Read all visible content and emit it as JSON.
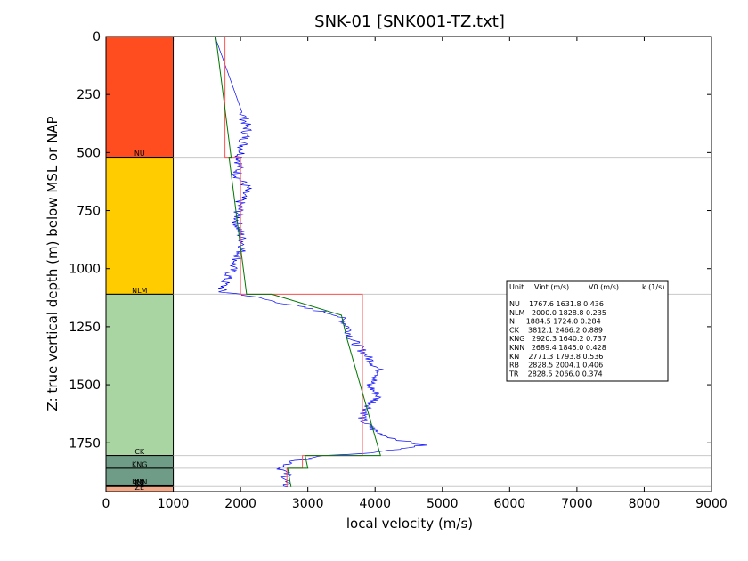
{
  "chart_data": {
    "type": "line",
    "title": "SNK-01 [SNK001-TZ.txt]",
    "xlabel": "local velocity (m/s)",
    "ylabel": "Z: true vertical depth (m) below MSL or NAP",
    "xlim": [
      0,
      9000
    ],
    "ylim": [
      1960,
      0
    ],
    "y_inverted": true,
    "x_ticks": [
      0,
      1000,
      2000,
      3000,
      4000,
      5000,
      6000,
      7000,
      8000,
      9000
    ],
    "y_ticks": [
      0,
      250,
      500,
      750,
      1000,
      1250,
      1500,
      1750
    ],
    "grid": false,
    "stratigraphy": [
      {
        "name": "NU",
        "top": 0,
        "base": 520,
        "color": "#ff4d1f"
      },
      {
        "name": "NLM",
        "top": 520,
        "base": 1110,
        "color": "#ffcc00"
      },
      {
        "name": "CK",
        "top": 1110,
        "base": 1805,
        "color": "#a8d5a2"
      },
      {
        "name": "KNG",
        "top": 1805,
        "base": 1860,
        "color": "#6f9c86"
      },
      {
        "name": "KN",
        "top": 1860,
        "base": 1935,
        "color": "#6f9c86"
      },
      {
        "name": "KNN",
        "top": 1860,
        "base": 1935,
        "color": "#6f9c86"
      },
      {
        "name": "RB",
        "top": 1935,
        "base": 1938,
        "color": "#6f9c86"
      },
      {
        "name": "ZE",
        "top": 1938,
        "base": 1960,
        "color": "#f2a98a"
      }
    ],
    "boundaries": [
      520,
      1110,
      1805,
      1860,
      1938
    ],
    "series": [
      {
        "color": "#0000ff",
        "kind": "noisy",
        "x": [
          1620,
          2050,
          2100,
          2050,
          2000,
          1950,
          2100,
          2000,
          1950,
          2050,
          1700,
          2010,
          2650,
          3450,
          3600,
          3650,
          3800,
          3950,
          4100,
          3900,
          4050,
          3900,
          3800,
          4000,
          4150,
          4400,
          4700,
          4100,
          3300,
          2800,
          2600,
          2700,
          2650,
          2700
        ],
        "y": [
          0,
          350,
          400,
          450,
          520,
          600,
          650,
          700,
          800,
          900,
          1100,
          1110,
          1150,
          1200,
          1250,
          1300,
          1350,
          1400,
          1450,
          1500,
          1550,
          1600,
          1650,
          1700,
          1720,
          1740,
          1760,
          1790,
          1805,
          1830,
          1860,
          1890,
          1920,
          1940
        ]
      },
      {
        "color": "#ff5555",
        "kind": "step",
        "x": [
          1768,
          1768,
          2000,
          2000,
          3812,
          3812,
          2920,
          2920,
          2689,
          2689
        ],
        "y": [
          0,
          520,
          520,
          1110,
          1110,
          1805,
          1805,
          1860,
          1860,
          1940
        ]
      },
      {
        "color": "#007700",
        "kind": "ramp",
        "x": [
          1632,
          1860,
          1829,
          2090,
          2466,
          3500,
          3580,
          4080,
          2960,
          3000,
          2700,
          2750
        ],
        "y": [
          0,
          520,
          520,
          1110,
          1110,
          1200,
          1300,
          1805,
          1805,
          1860,
          1860,
          1940
        ]
      }
    ],
    "legend": {
      "placement": "right",
      "header": [
        "Unit",
        "Vint (m/s)",
        "V0 (m/s)",
        "k (1/s)"
      ],
      "rows": [
        [
          "NU",
          "1767.6",
          "1631.8",
          "0.436"
        ],
        [
          "NLM",
          "2000.0",
          "1828.8",
          "0.235"
        ],
        [
          "N",
          "1884.5",
          "1724.0",
          "0.284"
        ],
        [
          "CK",
          "3812.1",
          "2466.2",
          "0.889"
        ],
        [
          "KNG",
          "2920.3",
          "1640.2",
          "0.737"
        ],
        [
          "KNN",
          "2689.4",
          "1845.0",
          "0.428"
        ],
        [
          "KN",
          "2771.3",
          "1793.8",
          "0.536"
        ],
        [
          "RB",
          "2828.5",
          "2004.1",
          "0.406"
        ],
        [
          "TR",
          "2828.5",
          "2066.0",
          "0.374"
        ]
      ]
    }
  }
}
